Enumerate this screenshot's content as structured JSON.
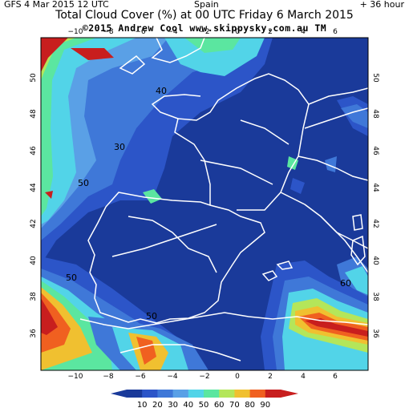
{
  "header": {
    "model_run": "GFS  4 Mar 2015 12 UTC",
    "region": "Spain",
    "forecast_hour": "+ 36 hour"
  },
  "title": "Total Cloud Cover (%) at 00 UTC Friday 6 March 2015",
  "copyright": "©2015 Andrew Cool  www.skippysky.com.au  TM",
  "map": {
    "lon_ticks": [
      "−10",
      "−8",
      "−6",
      "−4",
      "−2",
      "0",
      "2",
      "4",
      "6"
    ],
    "lat_ticks": [
      "50",
      "48",
      "46",
      "44",
      "42",
      "40",
      "38",
      "36"
    ],
    "contour_labels": [
      "40",
      "30",
      "50",
      "50",
      "50",
      "60"
    ]
  },
  "colorbar": {
    "labels": [
      "10",
      "20",
      "30",
      "40",
      "50",
      "60",
      "70",
      "80",
      "90"
    ],
    "colors": [
      "#1a3a9a",
      "#2c55c8",
      "#3f78d8",
      "#5aa0e6",
      "#52d4e8",
      "#5be6a0",
      "#b4e65a",
      "#f0c030",
      "#f06020",
      "#c81e1e"
    ]
  }
}
